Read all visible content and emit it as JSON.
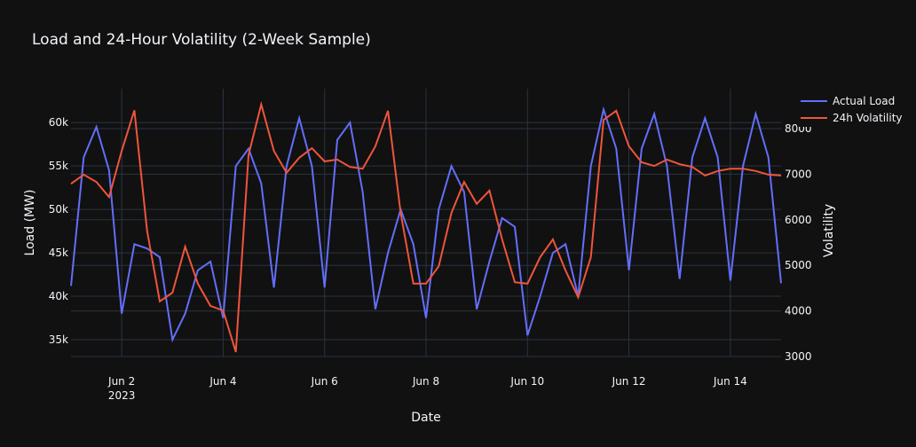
{
  "chart_data": {
    "type": "line",
    "title": "Load and 24-Hour Volatility (2-Week Sample)",
    "x_label": "Date",
    "y_label": "Load (MW)",
    "y2_label": "Volatility",
    "x": [
      1,
      1.25,
      1.5,
      1.75,
      2,
      2.25,
      2.5,
      2.75,
      3,
      3.25,
      3.5,
      3.75,
      4,
      4.25,
      4.5,
      4.75,
      5,
      5.25,
      5.5,
      5.75,
      6,
      6.25,
      6.5,
      6.75,
      7,
      7.25,
      7.5,
      7.75,
      8,
      8.25,
      8.5,
      8.75,
      9,
      9.25,
      9.5,
      9.75,
      10,
      10.25,
      10.5,
      10.75,
      11,
      11.25,
      11.5,
      11.75,
      12,
      12.25,
      12.5,
      12.75,
      13,
      13.25,
      13.5,
      13.75,
      14,
      14.25,
      14.5,
      14.75,
      15
    ],
    "series": [
      {
        "name": "Actual Load",
        "color": "#636efa",
        "axis": "y",
        "values": [
          41200,
          56000,
          59500,
          54500,
          38000,
          46000,
          45500,
          44500,
          35000,
          38000,
          43000,
          44000,
          37500,
          55000,
          57000,
          53000,
          41000,
          55000,
          60500,
          55000,
          41000,
          58000,
          60000,
          52000,
          38500,
          45000,
          50000,
          46000,
          37500,
          50000,
          55000,
          52000,
          38500,
          44000,
          49000,
          48000,
          35500,
          40000,
          45000,
          46000,
          40000,
          55000,
          61500,
          57000,
          43000,
          57000,
          61000,
          55000,
          42000,
          56000,
          60500,
          56000,
          41800,
          55000,
          61000,
          56000,
          41500
        ]
      },
      {
        "name": "24h Volatility",
        "color": "#EF553B",
        "axis": "y2",
        "values": [
          6790,
          6990,
          6830,
          6500,
          7510,
          8400,
          5760,
          4210,
          4400,
          5410,
          4600,
          4110,
          4010,
          3100,
          7420,
          8530,
          7510,
          7030,
          7360,
          7570,
          7280,
          7320,
          7160,
          7120,
          7610,
          8390,
          6150,
          4600,
          4600,
          4980,
          6150,
          6830,
          6350,
          6640,
          5570,
          4630,
          4600,
          5180,
          5570,
          4890,
          4300,
          5180,
          8190,
          8390,
          7610,
          7260,
          7180,
          7320,
          7220,
          7160,
          6970,
          7070,
          7120,
          7120,
          7070,
          6990,
          6970
        ]
      }
    ],
    "xlim": [
      1,
      15
    ],
    "xticks": [
      {
        "value": 2,
        "label": "Jun 2\n2023"
      },
      {
        "value": 4,
        "label": "Jun 4"
      },
      {
        "value": 6,
        "label": "Jun 6"
      },
      {
        "value": 8,
        "label": "Jun 8"
      },
      {
        "value": 10,
        "label": "Jun 10"
      },
      {
        "value": 12,
        "label": "Jun 12"
      },
      {
        "value": 14,
        "label": "Jun 14"
      }
    ],
    "ylim": [
      33060,
      63900
    ],
    "yticks": [
      {
        "value": 35000,
        "label": "35k"
      },
      {
        "value": 40000,
        "label": "40k"
      },
      {
        "value": 45000,
        "label": "45k"
      },
      {
        "value": 50000,
        "label": "50k"
      },
      {
        "value": 55000,
        "label": "55k"
      },
      {
        "value": 60000,
        "label": "60k"
      }
    ],
    "y2lim": [
      3000,
      8875
    ],
    "y2ticks": [
      3000,
      4000,
      5000,
      6000,
      7000,
      8000
    ],
    "grid": true,
    "legend": "top-right"
  }
}
